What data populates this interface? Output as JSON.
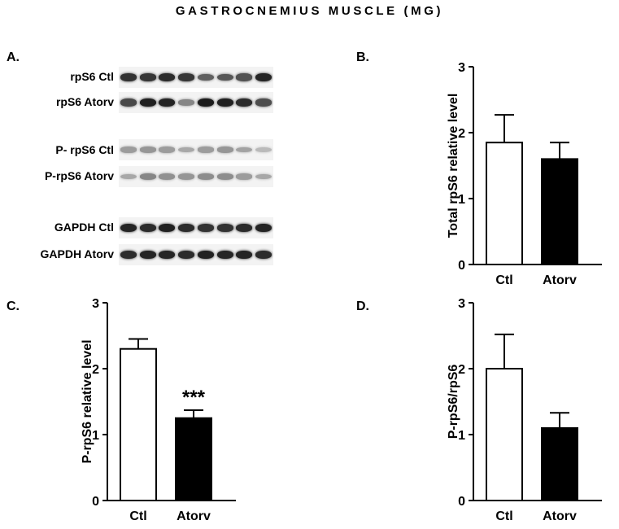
{
  "figure": {
    "title": "GASTROCNEMIUS MUSCLE (MG)",
    "panel_a_label": "A.",
    "lanes_per_blot": 8
  },
  "blots": [
    {
      "label": "rpS6 Ctl",
      "intensity": [
        0.82,
        0.8,
        0.85,
        0.8,
        0.62,
        0.66,
        0.68,
        0.88
      ]
    },
    {
      "label": "rpS6 Atorv",
      "intensity": [
        0.72,
        0.9,
        0.88,
        0.45,
        0.92,
        0.9,
        0.85,
        0.7
      ]
    },
    {
      "label": "P- rpS6 Ctl",
      "intensity": [
        0.35,
        0.38,
        0.35,
        0.3,
        0.35,
        0.38,
        0.32,
        0.22
      ]
    },
    {
      "label": "P-rpS6 Atorv",
      "intensity": [
        0.3,
        0.45,
        0.4,
        0.38,
        0.42,
        0.42,
        0.35,
        0.3
      ]
    },
    {
      "label": "GAPDH Ctl",
      "intensity": [
        0.88,
        0.85,
        0.9,
        0.85,
        0.82,
        0.82,
        0.85,
        0.88
      ]
    },
    {
      "label": "GAPDH Atorv",
      "intensity": [
        0.85,
        0.88,
        0.88,
        0.85,
        0.9,
        0.88,
        0.88,
        0.85
      ]
    }
  ],
  "chart_data": [
    {
      "panel": "B.",
      "type": "bar",
      "categories": [
        "Ctl",
        "Atorv"
      ],
      "values": [
        1.85,
        1.6
      ],
      "errors": [
        0.42,
        0.25
      ],
      "fills": [
        "#ffffff",
        "#000000"
      ],
      "ylabel": "Total rpS6 relative level",
      "ylim": [
        0,
        3
      ],
      "yticks": [
        0,
        1,
        2,
        3
      ],
      "annotations": [
        "",
        ""
      ]
    },
    {
      "panel": "C.",
      "type": "bar",
      "categories": [
        "Ctl",
        "Atorv"
      ],
      "values": [
        2.3,
        1.25
      ],
      "errors": [
        0.15,
        0.12
      ],
      "fills": [
        "#ffffff",
        "#000000"
      ],
      "ylabel": "P-rpS6 relative level",
      "ylim": [
        0,
        3
      ],
      "yticks": [
        0,
        1,
        2,
        3
      ],
      "annotations": [
        "",
        "***"
      ]
    },
    {
      "panel": "D.",
      "type": "bar",
      "categories": [
        "Ctl",
        "Atorv"
      ],
      "values": [
        2.0,
        1.1
      ],
      "errors": [
        0.52,
        0.23
      ],
      "fills": [
        "#ffffff",
        "#000000"
      ],
      "ylabel": "P-rpS6/rpS6",
      "ylim": [
        0,
        3
      ],
      "yticks": [
        0,
        1,
        2,
        3
      ],
      "annotations": [
        "",
        ""
      ]
    }
  ]
}
